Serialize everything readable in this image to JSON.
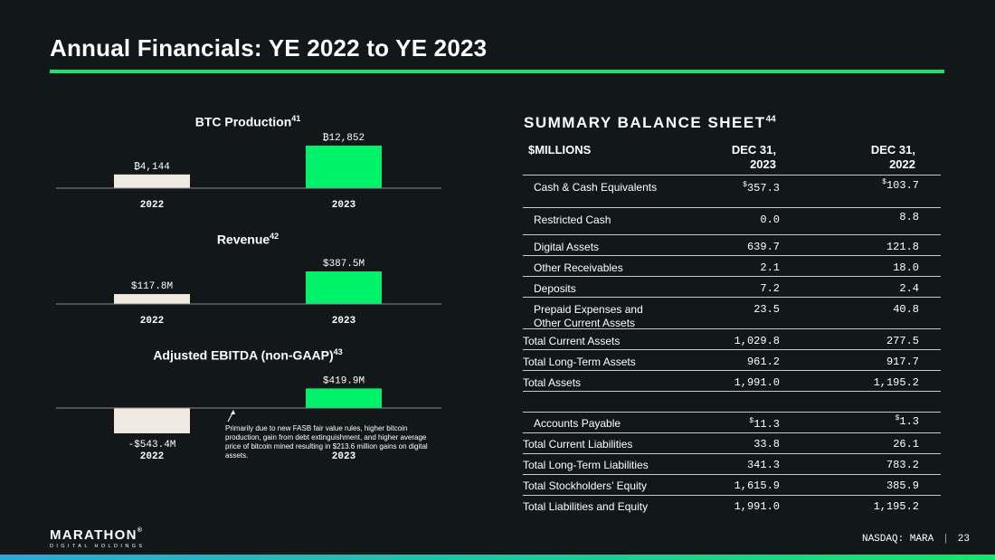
{
  "page": {
    "title": "Annual Financials: YE 2022 to YE 2023"
  },
  "chart_data": [
    {
      "type": "bar",
      "title": "BTC Production",
      "title_ref": "41",
      "categories": [
        "2022",
        "2023"
      ],
      "values": [
        4144,
        12852
      ],
      "value_labels": [
        "₿4,144",
        "₿12,852"
      ],
      "ylim": [
        0,
        12852
      ]
    },
    {
      "type": "bar",
      "title": "Revenue",
      "title_ref": "42",
      "categories": [
        "2022",
        "2023"
      ],
      "values": [
        117.8,
        387.5
      ],
      "value_labels": [
        "$117.8M",
        "$387.5M"
      ],
      "ylim": [
        0,
        387.5
      ]
    },
    {
      "type": "bar",
      "title": "Adjusted EBITDA (non-GAAP)",
      "title_ref": "43",
      "categories": [
        "2022",
        "2023"
      ],
      "values": [
        -543.4,
        419.9
      ],
      "value_labels": [
        "-$543.4M",
        "$419.9M"
      ],
      "ylim": [
        -543.4,
        419.9
      ],
      "annotation": "Primarily due to new FASB fair value rules, higher bitcoin production, gain from debt extinguishment, and higher average price of bitcoin mined resulting in $213.6 million gains on digital assets."
    }
  ],
  "balance_sheet": {
    "title": "SUMMARY BALANCE SHEET",
    "title_ref": "44",
    "header": {
      "label": "$MILLIONS",
      "col1_line1": "DEC 31,",
      "col1_line2": "2023",
      "col2_line1": "DEC 31,",
      "col2_line2": "2022"
    },
    "rows": [
      {
        "label": "Cash & Cash Equivalents",
        "v2023": "357.3",
        "v2022": "103.7",
        "prefix": "$"
      },
      {
        "label": "Restricted Cash",
        "v2023": "0.0",
        "v2022": "8.8"
      },
      {
        "label": "Digital Assets",
        "v2023": "639.7",
        "v2022": "121.8"
      },
      {
        "label": "Other Receivables",
        "v2023": "2.1",
        "v2022": "18.0"
      },
      {
        "label": "Deposits",
        "v2023": "7.2",
        "v2022": "2.4"
      },
      {
        "label": "Prepaid Expenses and",
        "label2": "Other Current Assets",
        "v2023": "23.5",
        "v2022": "40.8"
      },
      {
        "label": "Total Current Assets",
        "v2023": "1,029.8",
        "v2022": "277.5"
      },
      {
        "label": "Total Long-Term Assets",
        "v2023": "961.2",
        "v2022": "917.7"
      },
      {
        "label": "Total Assets",
        "v2023": "1,991.0",
        "v2022": "1,195.2"
      },
      {
        "label": "Accounts Payable",
        "v2023": "11.3",
        "v2022": "1.3",
        "prefix": "$"
      },
      {
        "label": "Total Current Liabilities",
        "v2023": "33.8",
        "v2022": "26.1"
      },
      {
        "label": "Total Long-Term Liabilities",
        "v2023": "341.3",
        "v2022": "783.2"
      },
      {
        "label": "Total Stockholders’ Equity",
        "v2023": "1,615.9",
        "v2022": "385.9"
      },
      {
        "label": "Total Liabilities and Equity",
        "v2023": "1,991.0",
        "v2022": "1,195.2"
      }
    ]
  },
  "footer": {
    "logo_main": "MARATHON",
    "logo_mark": "®",
    "logo_sub": "DIGITAL HOLDINGS",
    "ticker": "NASDAQ: MARA",
    "separator": "|",
    "page_number": "23"
  },
  "colors": {
    "background": "#12171a",
    "accent_green": "#19e36b",
    "bar_2022": "#efe9df",
    "bar_2023": "#00f26a"
  }
}
